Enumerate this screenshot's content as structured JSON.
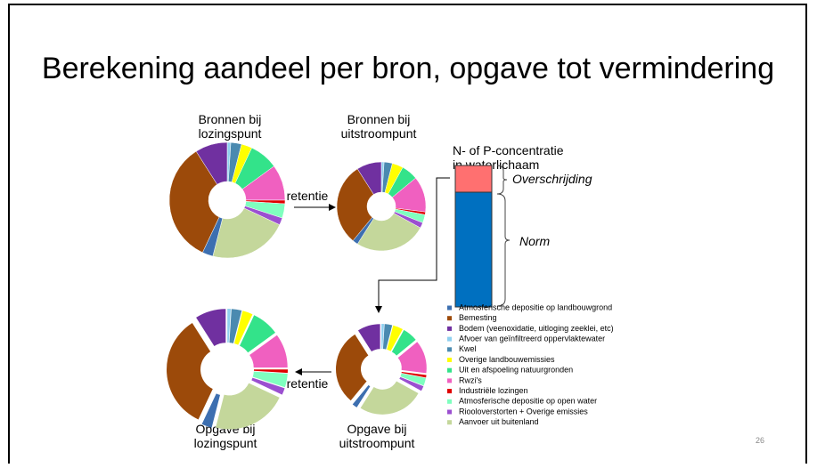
{
  "title": "Berekening aandeel per bron, opgave tot vermindering",
  "labels": {
    "pie_top_left": [
      "Bronnen bij",
      "lozingspunt"
    ],
    "pie_top_right": [
      "Bronnen bij",
      "uitstroompunt"
    ],
    "pie_bottom_left": [
      "Opgave bij",
      "lozingspunt"
    ],
    "pie_bottom_right": [
      "Opgave bij",
      "uitstroompunt"
    ],
    "retentie_top": "retentie",
    "retentie_bottom": "retentie",
    "concentration": [
      "N- of P-concentratie",
      "in waterlichaam"
    ],
    "overschrijding": "Overschrijding",
    "norm": "Norm",
    "page_number": "26"
  },
  "legend": [
    {
      "name": "Atmosferische depositie op landbouwgrond",
      "color": "#3d6fb0"
    },
    {
      "name": "Bemesting",
      "color": "#9c4a0a"
    },
    {
      "name": "Bodem (veenoxidatie, uitloging zeeklei, etc)",
      "color": "#7030a0"
    },
    {
      "name": "Afvoer van geïnfiltreerd oppervlaktewater",
      "color": "#8fd0f0"
    },
    {
      "name": "Kwel",
      "color": "#4a8ab0"
    },
    {
      "name": "Overige landbouwemissies",
      "color": "#ffff00"
    },
    {
      "name": "Uit en afspoeling natuurgronden",
      "color": "#33e38a"
    },
    {
      "name": "Rwzi's",
      "color": "#f060c0"
    },
    {
      "name": "Industriële lozingen",
      "color": "#e00000"
    },
    {
      "name": "Atmosferische depositie op open water",
      "color": "#7fffbf"
    },
    {
      "name": "Riooloverstorten  + Overige emissies",
      "color": "#9b4fd0"
    },
    {
      "name": "Aanvoer uit buitenland",
      "color": "#c4d79b"
    }
  ],
  "pie_order": [
    3,
    4,
    5,
    6,
    7,
    8,
    9,
    10,
    11,
    0,
    1,
    2
  ],
  "pies": {
    "lozingspunt": [
      3,
      34,
      9,
      1,
      3,
      3,
      8,
      10,
      1,
      4,
      2,
      22
    ],
    "uitstroompunt": [
      2,
      30,
      9,
      1,
      3,
      4,
      6,
      13,
      1,
      3,
      2,
      26
    ]
  }
}
